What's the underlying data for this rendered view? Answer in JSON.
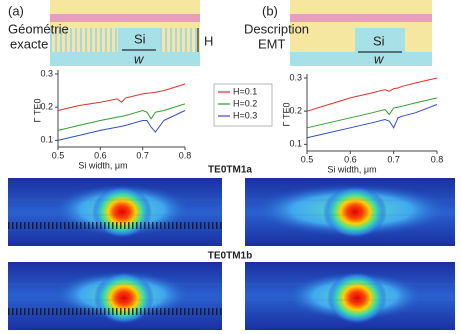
{
  "panels": [
    {
      "label": "(a)",
      "caption": [
        "Géométrie",
        "exacte"
      ],
      "si": "Si",
      "w": "w",
      "h": "H"
    },
    {
      "label": "(b)",
      "caption": [
        "Description",
        "EMT"
      ],
      "si": "Si",
      "w": "w"
    }
  ],
  "sections": [
    "TE0TM1a",
    "TE0TM1b"
  ],
  "chart_data": [
    {
      "type": "line",
      "xlabel": "Si width, μm",
      "ylabel": "Γ TE0",
      "xlim": [
        0.5,
        0.8
      ],
      "ylim": [
        0.08,
        0.3
      ],
      "xticks": [
        0.5,
        0.6,
        0.7,
        0.8
      ],
      "yticks": [
        0.1,
        0.2,
        0.3
      ],
      "x": [
        0.5,
        0.55,
        0.6,
        0.64,
        0.65,
        0.66,
        0.7,
        0.71,
        0.72,
        0.73,
        0.75,
        0.8
      ],
      "series": [
        {
          "name": "H=0.1",
          "color": "#e03030",
          "values": [
            0.19,
            0.205,
            0.215,
            0.225,
            0.215,
            0.228,
            0.24,
            0.242,
            0.243,
            0.245,
            0.25,
            0.27
          ]
        },
        {
          "name": "H=0.2",
          "color": "#30a030",
          "values": [
            0.13,
            0.145,
            0.16,
            0.17,
            0.172,
            0.175,
            0.19,
            0.185,
            0.165,
            0.185,
            0.19,
            0.21
          ]
        },
        {
          "name": "H=0.3",
          "color": "#3050c0",
          "values": [
            0.1,
            0.115,
            0.13,
            0.14,
            0.142,
            0.145,
            0.16,
            0.16,
            0.14,
            0.125,
            0.16,
            0.19
          ]
        }
      ]
    },
    {
      "type": "line",
      "xlabel": "Si width, μm",
      "ylabel": "Γ TE0",
      "xlim": [
        0.5,
        0.8
      ],
      "ylim": [
        0.08,
        0.3
      ],
      "xticks": [
        0.5,
        0.6,
        0.7,
        0.8
      ],
      "yticks": [
        0.1,
        0.2,
        0.3
      ],
      "x": [
        0.5,
        0.55,
        0.6,
        0.65,
        0.68,
        0.69,
        0.7,
        0.71,
        0.72,
        0.75,
        0.8
      ],
      "series": [
        {
          "color": "#e03030",
          "values": [
            0.2,
            0.22,
            0.24,
            0.255,
            0.265,
            0.26,
            0.268,
            0.27,
            0.275,
            0.285,
            0.3
          ]
        },
        {
          "color": "#30a030",
          "values": [
            0.15,
            0.165,
            0.18,
            0.195,
            0.205,
            0.19,
            0.21,
            0.212,
            0.215,
            0.225,
            0.24
          ]
        },
        {
          "color": "#3050c0",
          "values": [
            0.12,
            0.135,
            0.15,
            0.165,
            0.175,
            0.17,
            0.15,
            0.18,
            0.185,
            0.195,
            0.22
          ]
        }
      ]
    }
  ]
}
